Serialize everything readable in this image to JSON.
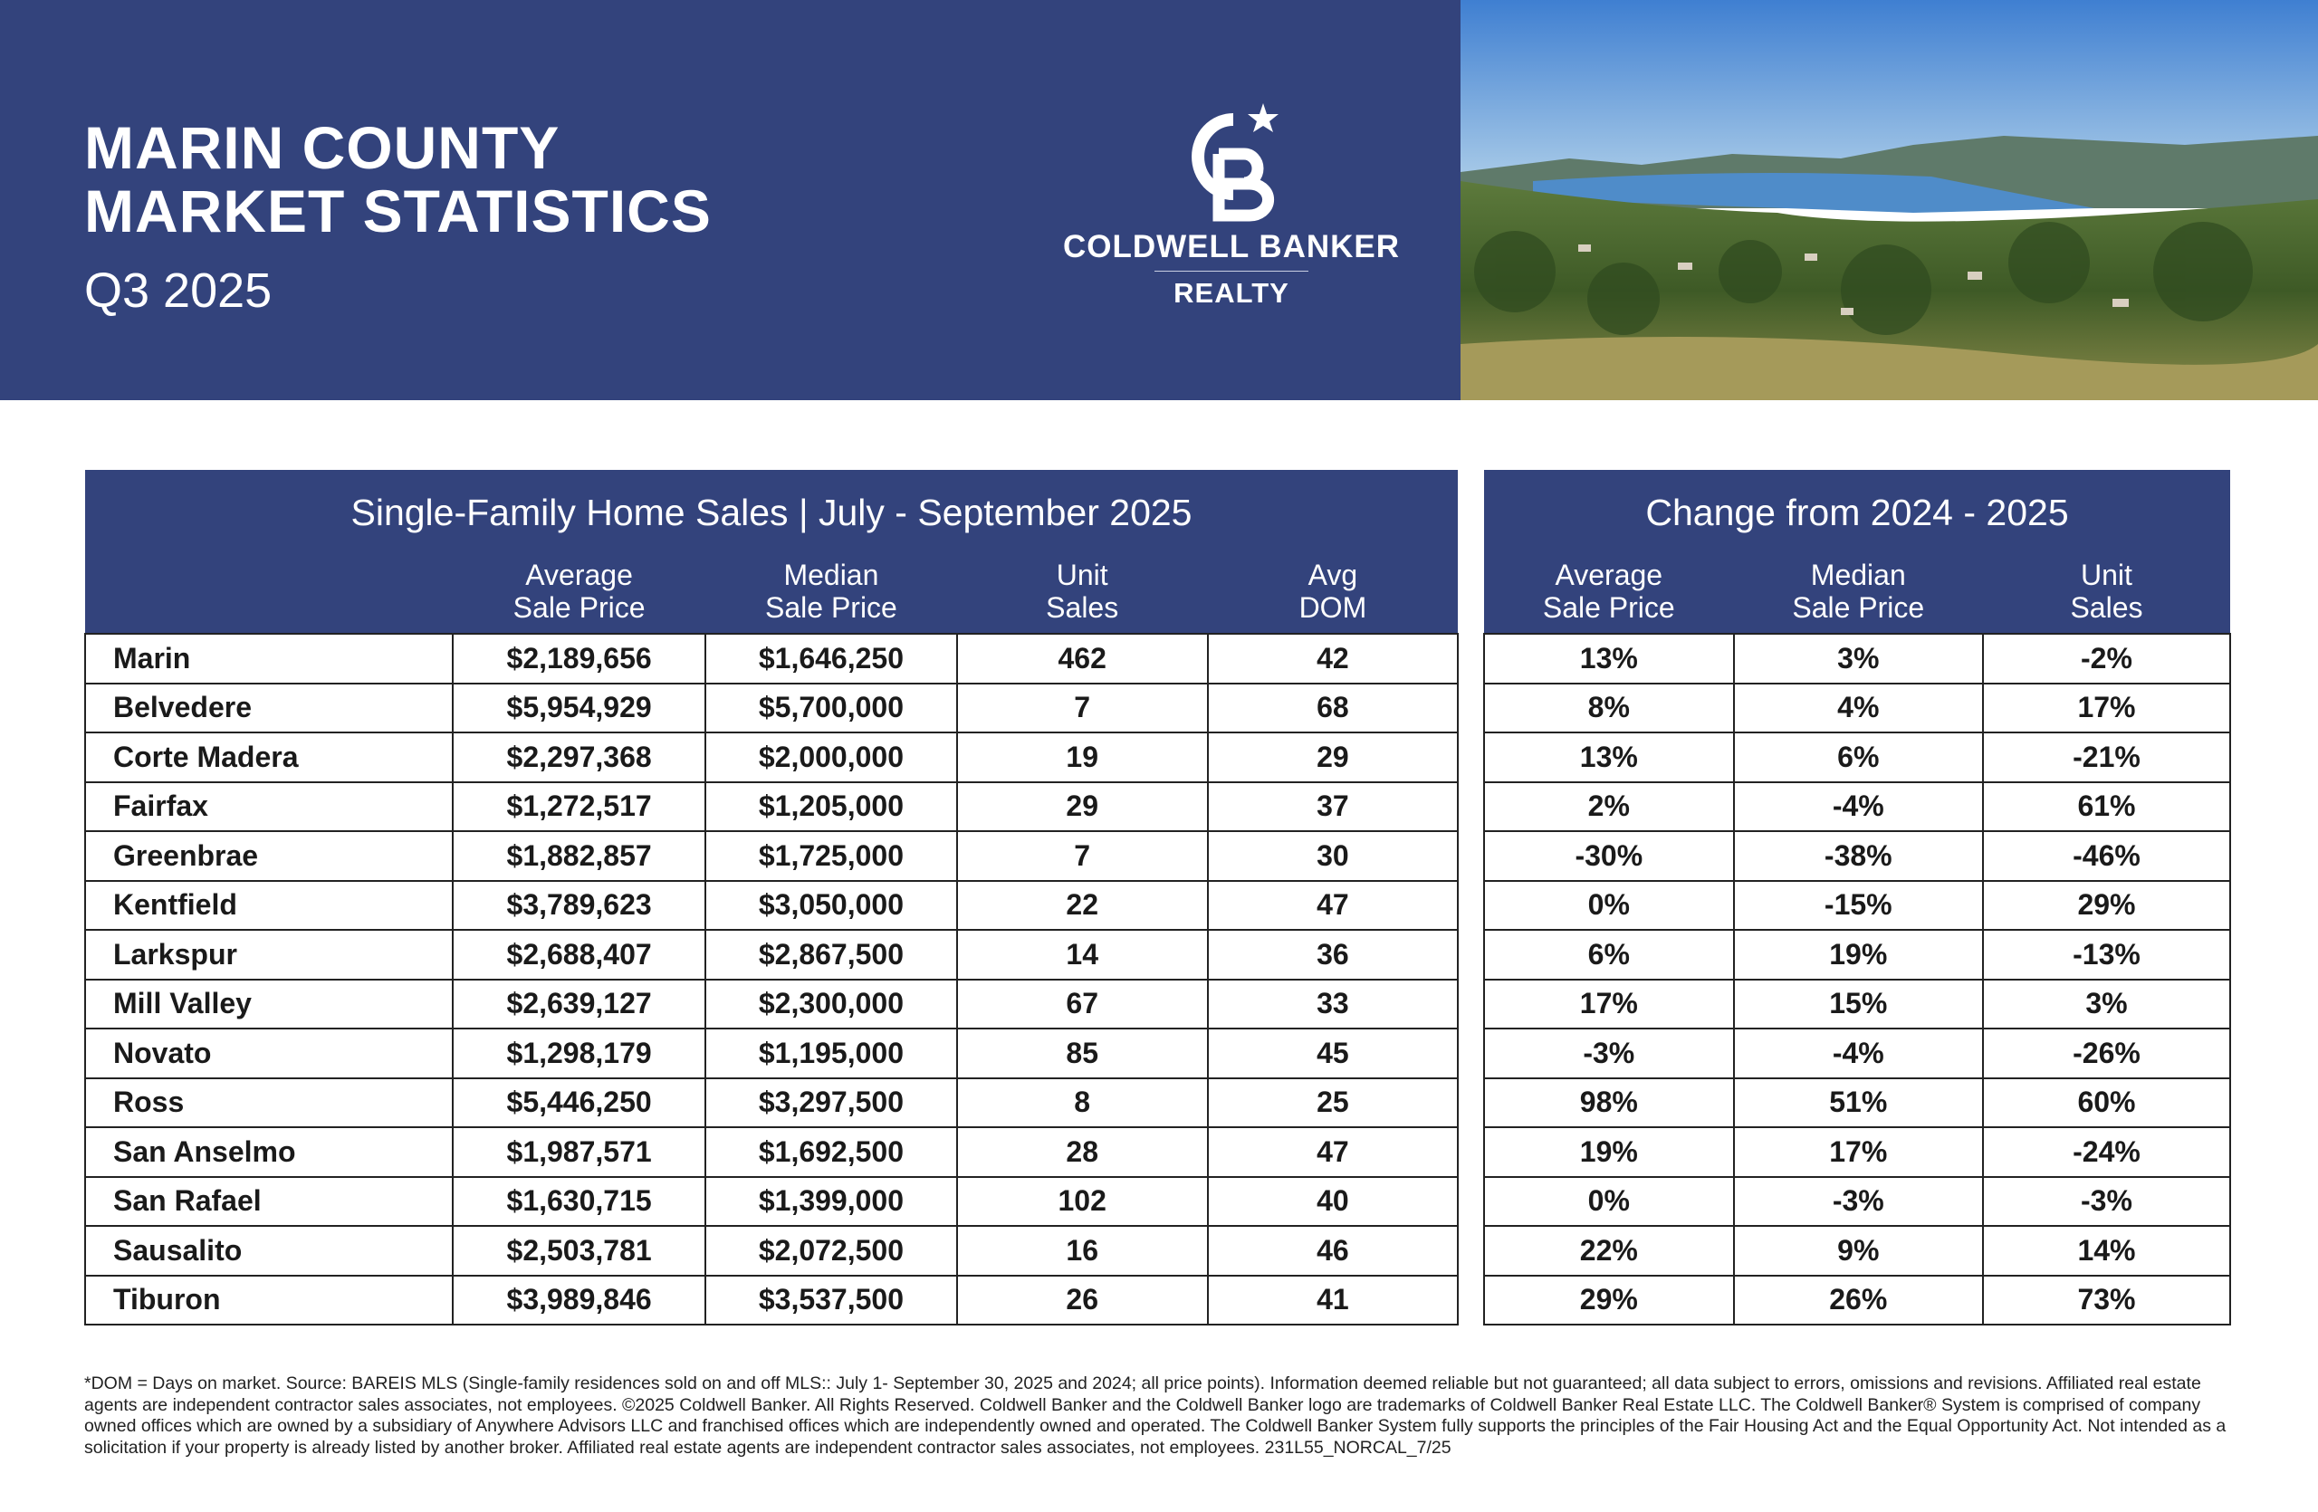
{
  "header": {
    "title_line1": "MARIN COUNTY",
    "title_line2": "MARKET STATISTICS",
    "subtitle": "Q3 2025",
    "logo_text": "CB",
    "brand_line1": "COLDWELL BANKER",
    "brand_line2": "REALTY",
    "brand_color": "#33437c"
  },
  "sales_table": {
    "caption": "Single-Family Home Sales | July - September 2025",
    "columns": [
      {
        "line1": "",
        "line2": ""
      },
      {
        "line1": "Average",
        "line2": "Sale Price"
      },
      {
        "line1": "Median",
        "line2": "Sale Price"
      },
      {
        "line1": "Unit",
        "line2": "Sales"
      },
      {
        "line1": "Avg",
        "line2": "DOM"
      }
    ],
    "rows": [
      [
        "Marin",
        "$2,189,656",
        "$1,646,250",
        "462",
        "42"
      ],
      [
        "Belvedere",
        "$5,954,929",
        "$5,700,000",
        "7",
        "68"
      ],
      [
        "Corte Madera",
        "$2,297,368",
        "$2,000,000",
        "19",
        "29"
      ],
      [
        "Fairfax",
        "$1,272,517",
        "$1,205,000",
        "29",
        "37"
      ],
      [
        "Greenbrae",
        "$1,882,857",
        "$1,725,000",
        "7",
        "30"
      ],
      [
        "Kentfield",
        "$3,789,623",
        "$3,050,000",
        "22",
        "47"
      ],
      [
        "Larkspur",
        "$2,688,407",
        "$2,867,500",
        "14",
        "36"
      ],
      [
        "Mill Valley",
        "$2,639,127",
        "$2,300,000",
        "67",
        "33"
      ],
      [
        "Novato",
        "$1,298,179",
        "$1,195,000",
        "85",
        "45"
      ],
      [
        "Ross",
        "$5,446,250",
        "$3,297,500",
        "8",
        "25"
      ],
      [
        "San Anselmo",
        "$1,987,571",
        "$1,692,500",
        "28",
        "47"
      ],
      [
        "San Rafael",
        "$1,630,715",
        "$1,399,000",
        "102",
        "40"
      ],
      [
        "Sausalito",
        "$2,503,781",
        "$2,072,500",
        "16",
        "46"
      ],
      [
        "Tiburon",
        "$3,989,846",
        "$3,537,500",
        "26",
        "41"
      ]
    ]
  },
  "change_table": {
    "caption": "Change from 2024 - 2025",
    "columns": [
      {
        "line1": "Average",
        "line2": "Sale Price"
      },
      {
        "line1": "Median",
        "line2": "Sale Price"
      },
      {
        "line1": "Unit",
        "line2": "Sales"
      }
    ],
    "rows": [
      [
        "13%",
        "3%",
        "-2%"
      ],
      [
        "8%",
        "4%",
        "17%"
      ],
      [
        "13%",
        "6%",
        "-21%"
      ],
      [
        "2%",
        "-4%",
        "61%"
      ],
      [
        "-30%",
        "-38%",
        "-46%"
      ],
      [
        "0%",
        "-15%",
        "29%"
      ],
      [
        "6%",
        "19%",
        "-13%"
      ],
      [
        "17%",
        "15%",
        "3%"
      ],
      [
        "-3%",
        "-4%",
        "-26%"
      ],
      [
        "98%",
        "51%",
        "60%"
      ],
      [
        "19%",
        "17%",
        "-24%"
      ],
      [
        "0%",
        "-3%",
        "-3%"
      ],
      [
        "22%",
        "9%",
        "14%"
      ],
      [
        "29%",
        "26%",
        "73%"
      ]
    ]
  },
  "footer": {
    "disclaimer": "*DOM = Days on market. Source: BAREIS MLS (Single-family residences sold on and off MLS:: July 1- September 30, 2025 and 2024; all price points). Information deemed reliable but not guaranteed; all data subject to errors, omissions and revisions. Affiliated real estate agents are independent contractor sales associates, not employees. ©2025 Coldwell Banker. All Rights Reserved. Coldwell Banker and the Coldwell Banker logo are trademarks of Coldwell Banker Real Estate LLC. The Coldwell Banker® System is comprised of company owned offices which are owned by a subsidiary of Anywhere Advisors LLC and franchised offices which are independently owned and operated. The Coldwell Banker System fully supports the principles of the Fair Housing Act and the Equal Opportunity Act. Not intended as a solicitation if your property is already listed by another broker. Affiliated real estate agents are independent contractor sales associates, not employees. 231L55_NORCAL_7/25"
  }
}
